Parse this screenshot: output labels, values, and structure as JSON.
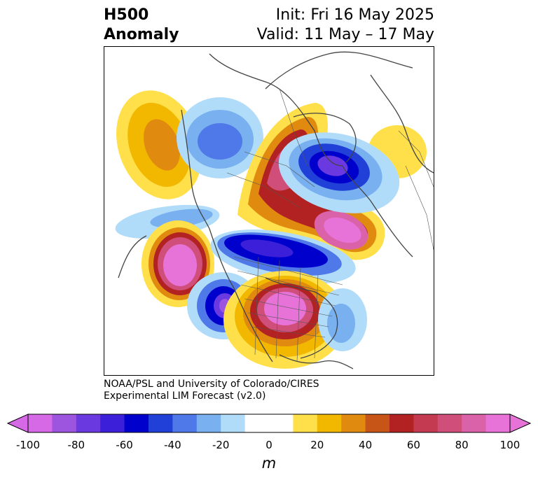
{
  "title": {
    "left_line1": "H500",
    "left_line2": "Anomaly",
    "right_line1": "Init: Fri 16 May 2025",
    "right_line2": "Valid: 11 May – 17 May"
  },
  "credit": {
    "line1": "NOAA/PSL and University of Colorado/CIRES",
    "line2": "Experimental LIM Forecast (v2.0)"
  },
  "colorbar": {
    "units": "m",
    "ticks": [
      "-100",
      "-80",
      "-60",
      "-40",
      "-20",
      "0",
      "20",
      "40",
      "60",
      "80",
      "100"
    ],
    "colors": [
      "#d66ae6",
      "#9d55e0",
      "#6a3ae0",
      "#3c1fd9",
      "#0000cd",
      "#2040d8",
      "#4f78e8",
      "#78b0f0",
      "#b0dcfa",
      "#ffffff",
      "#ffffff",
      "#ffe04a",
      "#f2b800",
      "#e08a10",
      "#c85518",
      "#b22222",
      "#c43a50",
      "#cf4e7a",
      "#da62a8",
      "#e873d8"
    ]
  },
  "map": {
    "projection": "polar-stereographic",
    "region": "North America / North Atlantic / North Pacific"
  }
}
